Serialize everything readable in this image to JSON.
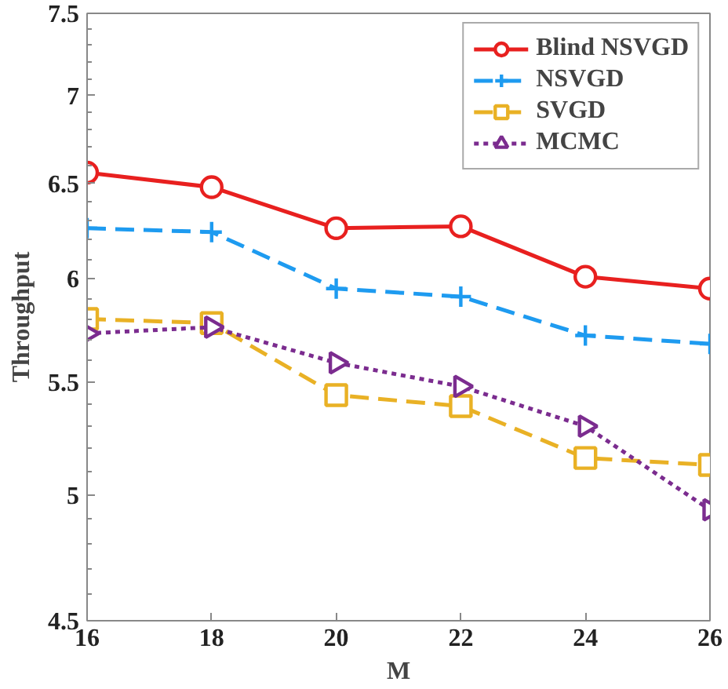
{
  "chart_data": {
    "type": "line",
    "xlabel": "M",
    "ylabel": "Throughput",
    "x": [
      16,
      18,
      20,
      22,
      24,
      26
    ],
    "series": [
      {
        "name": "Blind NSVGD",
        "color": "#e8201f",
        "marker": "circle",
        "line_style": "solid",
        "values": [
          6.56,
          6.48,
          6.26,
          6.27,
          6.01,
          5.95
        ]
      },
      {
        "name": "NSVGD",
        "color": "#1e9bf0",
        "marker": "cross",
        "line_style": "dashed",
        "values": [
          6.26,
          6.24,
          5.95,
          5.91,
          5.72,
          5.68
        ]
      },
      {
        "name": "SVGD",
        "color": "#e9b125",
        "marker": "square",
        "line_style": "dashed",
        "values": [
          5.8,
          5.78,
          5.44,
          5.39,
          5.16,
          5.13
        ]
      },
      {
        "name": "MCMC",
        "color": "#7b2c8f",
        "marker": "triangle",
        "line_style": "dotted",
        "values": [
          5.73,
          5.76,
          5.59,
          5.48,
          5.3,
          4.94
        ]
      }
    ],
    "log": "y",
    "xlim": [
      16,
      26
    ],
    "xticks": [
      16,
      18,
      20,
      22,
      24,
      26
    ],
    "ylim": [
      4.5,
      7.5
    ],
    "yticks": [
      4.5,
      5,
      5.5,
      6,
      6.5,
      7,
      7.5
    ],
    "grid": false,
    "legend": "top right"
  }
}
